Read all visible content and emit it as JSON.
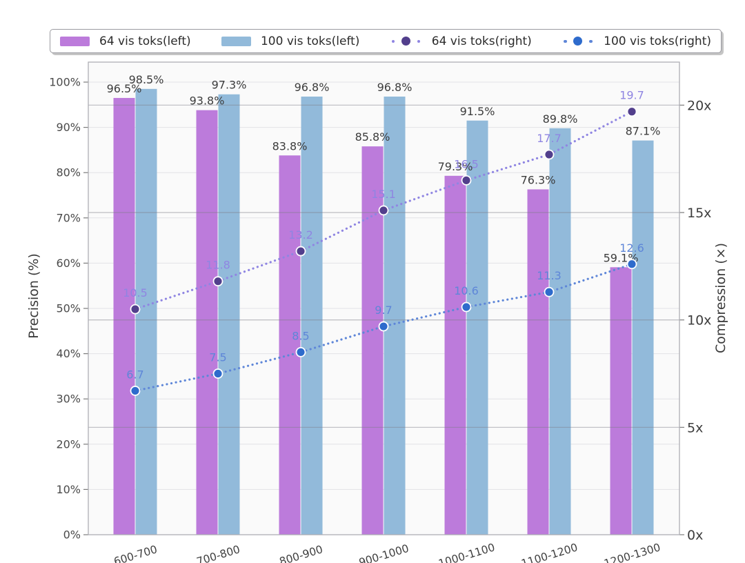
{
  "chart_data": {
    "type": "bar+line-dual-axis",
    "categories": [
      "600-700",
      "700-800",
      "800-900",
      "900-1000",
      "1000-1100",
      "1100-1200",
      "1200-1300"
    ],
    "bar_series": [
      {
        "name": "64 vis toks(left)",
        "axis": "left",
        "color": "#bc7bdb",
        "values": [
          96.5,
          93.8,
          83.8,
          85.8,
          79.3,
          76.3,
          59.1
        ],
        "labels": [
          "96.5%",
          "93.8%",
          "83.8%",
          "85.8%",
          "79.3%",
          "76.3%",
          "59.1%"
        ]
      },
      {
        "name": "100 vis toks(left)",
        "axis": "left",
        "color": "#92bada",
        "values": [
          98.5,
          97.3,
          96.8,
          96.8,
          91.5,
          89.8,
          87.1
        ],
        "labels": [
          "98.5%",
          "97.3%",
          "96.8%",
          "96.8%",
          "91.5%",
          "89.8%",
          "87.1%"
        ]
      }
    ],
    "line_series": [
      {
        "name": "64 vis toks(right)",
        "axis": "right",
        "line_color": "#8f85e2",
        "marker_color": "#523f8c",
        "values": [
          10.5,
          11.8,
          13.2,
          15.1,
          16.5,
          17.7,
          19.7
        ],
        "labels": [
          "10.5",
          "11.8",
          "13.2",
          "15.1",
          "16.5",
          "17.7",
          "19.7"
        ]
      },
      {
        "name": "100 vis toks(right)",
        "axis": "right",
        "line_color": "#5e86d8",
        "marker_color": "#2e6bcc",
        "values": [
          6.7,
          7.5,
          8.5,
          9.7,
          10.6,
          11.3,
          12.6
        ],
        "labels": [
          "6.7",
          "7.5",
          "8.5",
          "9.7",
          "10.6",
          "11.3",
          "12.6"
        ]
      }
    ],
    "left_axis": {
      "label": "Precision (%)",
      "min": 0,
      "max": 100,
      "tick_step": 10,
      "tick_suffix": "%",
      "ticks": [
        "0%",
        "10%",
        "20%",
        "30%",
        "40%",
        "50%",
        "60%",
        "70%",
        "80%",
        "90%",
        "100%"
      ]
    },
    "right_axis": {
      "label": "Compression (×)",
      "min": 0,
      "max": 20,
      "tick_step": 5,
      "tick_suffix": "x",
      "ticks": [
        "0x",
        "5x",
        "10x",
        "15x",
        "20x"
      ]
    },
    "grid": true,
    "legend_position": "top"
  }
}
